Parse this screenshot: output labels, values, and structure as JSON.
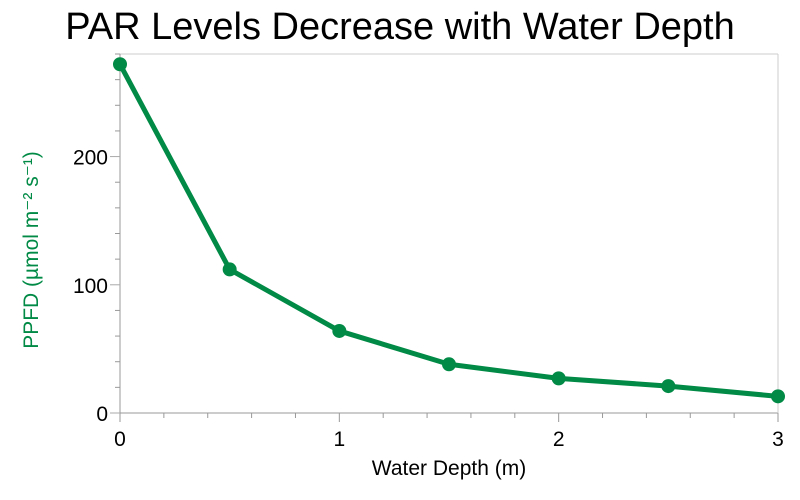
{
  "chart_data": {
    "type": "line",
    "title": "PAR Levels Decrease with Water Depth",
    "xlabel": "Water Depth  (m)",
    "ylabel": "PPFD (µmol m⁻² s⁻¹)",
    "x": [
      0,
      0.5,
      1,
      1.5,
      2,
      2.5,
      3
    ],
    "series": [
      {
        "name": "PPFD",
        "values": [
          272,
          112,
          64,
          38,
          27,
          21,
          13
        ],
        "color": "#008a45"
      }
    ],
    "xlim": [
      0,
      3
    ],
    "ylim": [
      0,
      280
    ],
    "xticks": [
      0,
      1,
      2,
      3
    ],
    "xtick_labels": [
      "0",
      "1",
      "2",
      "3"
    ],
    "x_minor_step": 0.2,
    "yticks": [
      0,
      100,
      200
    ],
    "ytick_labels": [
      "0",
      "100",
      "200"
    ],
    "y_minor_step": 20,
    "grid": false,
    "legend": "none"
  },
  "colors": {
    "series": "#008a45",
    "ylabel": "#008a45",
    "axis": "#999999"
  }
}
